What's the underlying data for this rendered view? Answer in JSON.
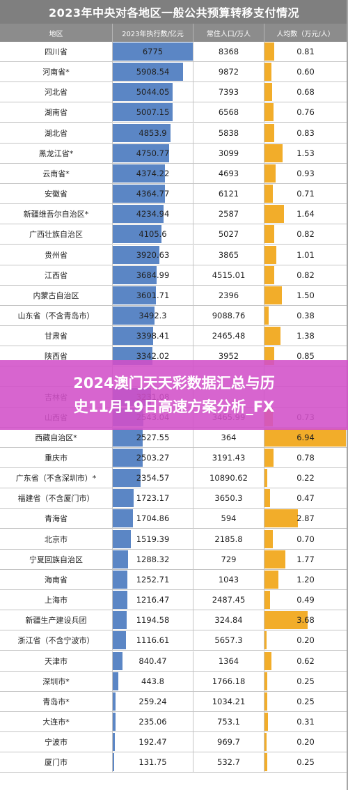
{
  "chart_data": {
    "type": "table",
    "title": "2023年中央对各地区一般公共预算转移支付情况",
    "columns": [
      "地区",
      "2023年执行数/亿元",
      "常住人口/万人",
      "人均数（万元/人）"
    ],
    "colors": {
      "payment_bar": "#5b86c5",
      "per_capita_bar": "#f2ad2a",
      "header_bg": "#8c8c8c",
      "title_bg": "#7f7f7f"
    },
    "rows": [
      {
        "region": "四川省",
        "payment": "6775",
        "population": "8368",
        "per_capita": "0.81"
      },
      {
        "region": "河南省*",
        "payment": "5908.54",
        "population": "9872",
        "per_capita": "0.60"
      },
      {
        "region": "河北省",
        "payment": "5044.05",
        "population": "7393",
        "per_capita": "0.68"
      },
      {
        "region": "湖南省",
        "payment": "5007.15",
        "population": "6568",
        "per_capita": "0.76"
      },
      {
        "region": "湖北省",
        "payment": "4853.9",
        "population": "5838",
        "per_capita": "0.83"
      },
      {
        "region": "黑龙江省*",
        "payment": "4750.77",
        "population": "3099",
        "per_capita": "1.53"
      },
      {
        "region": "云南省*",
        "payment": "4374.22",
        "population": "4693",
        "per_capita": "0.93"
      },
      {
        "region": "安徽省",
        "payment": "4364.77",
        "population": "6121",
        "per_capita": "0.71"
      },
      {
        "region": "新疆维吾尔自治区*",
        "payment": "4234.94",
        "population": "2587",
        "per_capita": "1.64"
      },
      {
        "region": "广西壮族自治区",
        "payment": "4105.6",
        "population": "5027",
        "per_capita": "0.82"
      },
      {
        "region": "贵州省",
        "payment": "3920.63",
        "population": "3865",
        "per_capita": "1.01"
      },
      {
        "region": "江西省",
        "payment": "3684.99",
        "population": "4515.01",
        "per_capita": "0.82"
      },
      {
        "region": "内蒙古自治区",
        "payment": "3601.71",
        "population": "2396",
        "per_capita": "1.50"
      },
      {
        "region": "山东省（不含青岛市）",
        "payment": "3492.3",
        "population": "9088.76",
        "per_capita": "0.38"
      },
      {
        "region": "甘肃省",
        "payment": "3398.41",
        "population": "2465.48",
        "per_capita": "1.38"
      },
      {
        "region": "陕西省",
        "payment": "3342.02",
        "population": "3952",
        "per_capita": "0.85"
      },
      {
        "region": "",
        "payment": "",
        "population": "",
        "per_capita": ""
      },
      {
        "region": "吉林省",
        "payment": "3231.08",
        "population": "",
        "per_capita": ""
      },
      {
        "region": "山西省",
        "payment": "2543.04",
        "population": "3465.99",
        "per_capita": "0.73"
      },
      {
        "region": "西藏自治区*",
        "payment": "2527.55",
        "population": "364",
        "per_capita": "6.94"
      },
      {
        "region": "重庆市",
        "payment": "2503.27",
        "population": "3191.43",
        "per_capita": "0.78"
      },
      {
        "region": "广东省（不含深圳市）*",
        "payment": "2354.57",
        "population": "10890.62",
        "per_capita": "0.22"
      },
      {
        "region": "福建省（不含厦门市）",
        "payment": "1723.17",
        "population": "3650.3",
        "per_capita": "0.47"
      },
      {
        "region": "青海省",
        "payment": "1704.86",
        "population": "594",
        "per_capita": "2.87"
      },
      {
        "region": "北京市",
        "payment": "1519.39",
        "population": "2185.8",
        "per_capita": "0.70"
      },
      {
        "region": "宁夏回族自治区",
        "payment": "1288.32",
        "population": "729",
        "per_capita": "1.77"
      },
      {
        "region": "海南省",
        "payment": "1252.71",
        "population": "1043",
        "per_capita": "1.20"
      },
      {
        "region": "上海市",
        "payment": "1216.47",
        "population": "2487.45",
        "per_capita": "0.49"
      },
      {
        "region": "新疆生产建设兵团",
        "payment": "1194.58",
        "population": "324.84",
        "per_capita": "3.68"
      },
      {
        "region": "浙江省（不含宁波市）",
        "payment": "1116.61",
        "population": "5657.3",
        "per_capita": "0.20"
      },
      {
        "region": "天津市",
        "payment": "840.47",
        "population": "1364",
        "per_capita": "0.62"
      },
      {
        "region": "深圳市*",
        "payment": "443.8",
        "population": "1766.18",
        "per_capita": "0.25"
      },
      {
        "region": "青岛市*",
        "payment": "259.24",
        "population": "1034.21",
        "per_capita": "0.25"
      },
      {
        "region": "大连市*",
        "payment": "235.06",
        "population": "753.1",
        "per_capita": "0.31"
      },
      {
        "region": "宁波市",
        "payment": "192.47",
        "population": "969.7",
        "per_capita": "0.20"
      },
      {
        "region": "厦门市",
        "payment": "131.75",
        "population": "532.7",
        "per_capita": "0.25"
      }
    ]
  },
  "banner": {
    "line1": "2024澳门天天彩数据汇总与历",
    "line2": "史11月19日高速方案分析_FX"
  }
}
